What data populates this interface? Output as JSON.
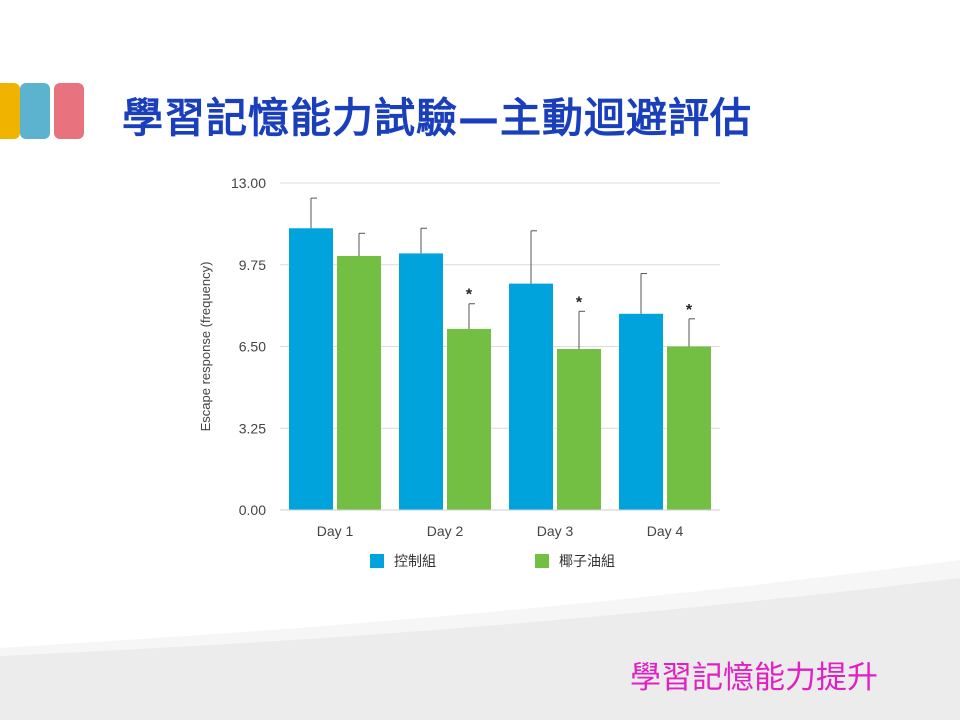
{
  "slide": {
    "title": "學習記憶能力試驗—主動迴避評估",
    "footer": "學習記憶能力提升",
    "accent_colors": {
      "title": "#1a3fbd",
      "footer": "#e020c4",
      "deco": [
        "#f0b400",
        "#5cb3cf",
        "#e8737f"
      ]
    }
  },
  "chart_data": {
    "type": "bar",
    "categories": [
      "Day 1",
      "Day 2",
      "Day 3",
      "Day 4"
    ],
    "series": [
      {
        "name": "控制組",
        "color": "#00a3dc",
        "values": [
          11.2,
          10.2,
          9.0,
          7.8
        ],
        "errors": [
          1.2,
          1.0,
          2.1,
          1.6
        ]
      },
      {
        "name": "椰子油組",
        "color": "#72bf44",
        "values": [
          10.1,
          7.2,
          6.4,
          6.5
        ],
        "errors": [
          0.9,
          1.0,
          1.5,
          1.1
        ]
      }
    ],
    "significance": [
      {
        "category": "Day 2",
        "series": "椰子油組",
        "marker": "*"
      },
      {
        "category": "Day 3",
        "series": "椰子油組",
        "marker": "*"
      },
      {
        "category": "Day 4",
        "series": "椰子油組",
        "marker": "*"
      }
    ],
    "ylabel": "Escape response (frequency)",
    "xlabel": "",
    "ylim": [
      0,
      13
    ],
    "yticks": [
      "0.00",
      "3.25",
      "6.50",
      "9.75",
      "13.00"
    ],
    "grid": true,
    "legend_position": "bottom"
  }
}
